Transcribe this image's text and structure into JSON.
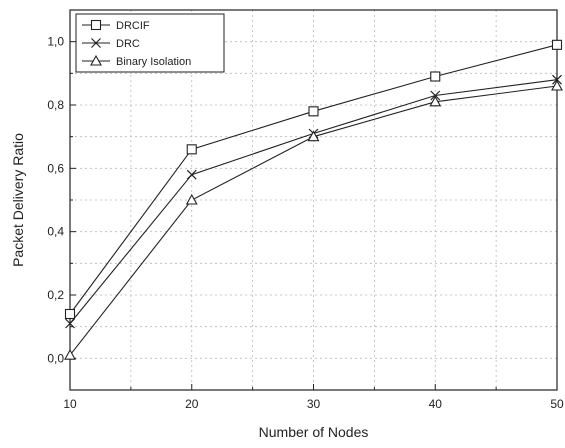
{
  "chart_data": {
    "type": "line",
    "title": "",
    "xlabel": "Number of Nodes",
    "ylabel": "Packet Delivery Ratio",
    "x": [
      10,
      20,
      30,
      40,
      50
    ],
    "xlim": [
      10,
      50
    ],
    "ylim": [
      -0.1,
      1.1
    ],
    "x_ticks": [
      10,
      20,
      30,
      40,
      50
    ],
    "x_tick_labels": [
      "10",
      "20",
      "30",
      "40",
      "50"
    ],
    "y_ticks": [
      0.0,
      0.2,
      0.4,
      0.6,
      0.8,
      1.0
    ],
    "y_tick_labels": [
      "0,0",
      "0,2",
      "0,4",
      "0,6",
      "0,8",
      "1,0"
    ],
    "grid": true,
    "legend_position": "top-left",
    "series": [
      {
        "name": "DRCIF",
        "marker": "square",
        "values": [
          0.14,
          0.66,
          0.78,
          0.89,
          0.99
        ]
      },
      {
        "name": "DRC",
        "marker": "x",
        "values": [
          0.11,
          0.58,
          0.71,
          0.83,
          0.88
        ]
      },
      {
        "name": "Binary Isolation",
        "marker": "triangle",
        "values": [
          0.01,
          0.5,
          0.7,
          0.81,
          0.86
        ]
      }
    ]
  }
}
